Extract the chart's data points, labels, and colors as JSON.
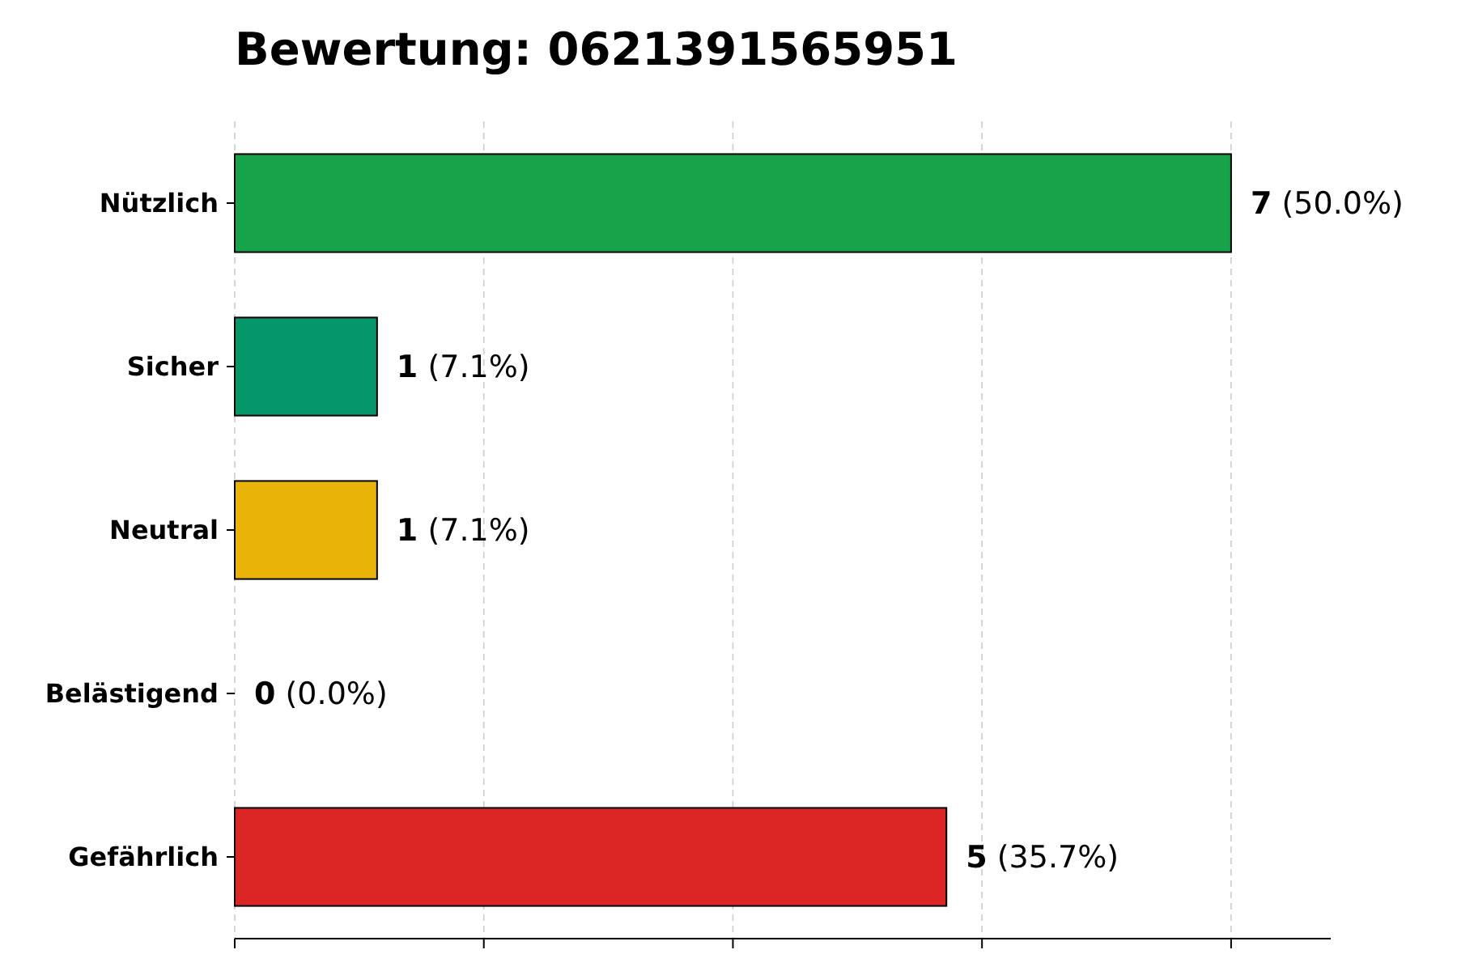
{
  "chart_data": {
    "type": "bar",
    "orientation": "horizontal",
    "title": "Bewertung: 0621391565951",
    "categories": [
      "Nützlich",
      "Sicher",
      "Neutral",
      "Belästigend",
      "Gefährlich"
    ],
    "values": [
      7,
      1,
      1,
      0,
      5
    ],
    "colors": [
      "#16a34a",
      "#059669",
      "#eab308",
      "#6b7280",
      "#dc2626"
    ],
    "value_labels": [
      "7 (50.0%)",
      "1 (7.1%)",
      "1 (7.1%)",
      "0 (0.0%)",
      "5 (35.7%)"
    ],
    "xlim": [
      0,
      7.7
    ],
    "xticks": [
      {
        "value": 0,
        "label": null
      },
      {
        "value": 1.75,
        "label": null
      },
      {
        "value": 3.5,
        "label": null
      },
      {
        "value": 5.25,
        "label": null
      },
      {
        "value": 7,
        "label": null
      }
    ],
    "tick_labels": "y",
    "grid": "x"
  }
}
